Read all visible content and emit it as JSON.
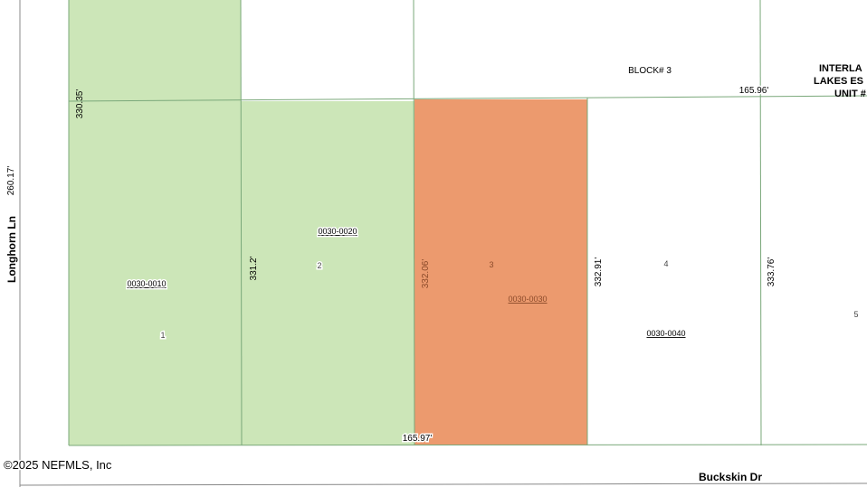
{
  "map": {
    "block": "BLOCK# 3",
    "subdivision": [
      "INTERLA",
      "LAKES ES",
      "UNIT #"
    ],
    "top_frontage": "165.96'",
    "bottom_frontage": "165.97'",
    "left_depth": "330.35'",
    "road_depth": "260.17'",
    "west_road": "Longhorn Ln",
    "south_road": "Buckskin Dr",
    "copyright": "©2025 NEFMLS, Inc",
    "parcels": [
      {
        "id": "0030-0010",
        "lot": "1"
      },
      {
        "id": "0030-0020",
        "lot": "2",
        "depth": "331.2'"
      },
      {
        "id": "0030-0030",
        "lot": "3",
        "depth": "332.06'"
      },
      {
        "id": "0030-0040",
        "lot": "4",
        "depth": "332.91'"
      },
      {
        "lot": "5",
        "depth": "333.76'"
      }
    ]
  }
}
